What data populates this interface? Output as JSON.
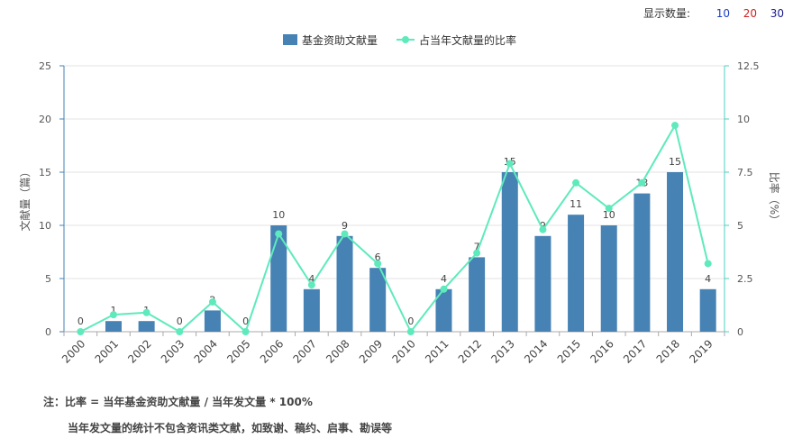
{
  "display_count": {
    "label": "显示数量:",
    "options": [
      {
        "label": "10",
        "color": "#1a3fc4"
      },
      {
        "label": "20",
        "color": "#d22020"
      },
      {
        "label": "30",
        "color": "#1a1a8c"
      }
    ]
  },
  "notes": {
    "line1": "注：比率 = 当年基金资助文献量 / 当年发文量 * 100%",
    "line2": "当年发文量的统计不包含资讯类文献，如致谢、稿约、启事、勘误等"
  },
  "chart_data": {
    "type": "bar",
    "categories": [
      "2000",
      "2001",
      "2002",
      "2003",
      "2004",
      "2005",
      "2006",
      "2007",
      "2008",
      "2009",
      "2010",
      "2011",
      "2012",
      "2013",
      "2014",
      "2015",
      "2016",
      "2017",
      "2018",
      "2019"
    ],
    "series": [
      {
        "name": "基金资助文献量",
        "type": "bar",
        "axis": "left",
        "color": "#4682b4",
        "values": [
          0,
          1,
          1,
          0,
          2,
          0,
          10,
          4,
          9,
          6,
          0,
          4,
          7,
          15,
          9,
          11,
          10,
          13,
          15,
          4
        ]
      },
      {
        "name": "占当年文献量的比率",
        "type": "line",
        "axis": "right",
        "color": "#5eeabc",
        "values": [
          0,
          0.8,
          0.9,
          0,
          1.4,
          0,
          4.6,
          2.2,
          4.6,
          3.2,
          0,
          2.0,
          3.7,
          7.9,
          4.8,
          7.0,
          5.8,
          7.0,
          9.7,
          3.2
        ]
      }
    ],
    "ylabel": "文献量（篇）",
    "ylabel_right": "比率（%）",
    "ylim": [
      0,
      25
    ],
    "yticks": [
      0,
      5,
      10,
      15,
      20,
      25
    ],
    "ylim_right": [
      0,
      12.5
    ],
    "yticks_right": [
      "0",
      "2.5",
      "5",
      "7.5",
      "10",
      "12.5"
    ],
    "grid": true,
    "legend_position": "top-center"
  }
}
